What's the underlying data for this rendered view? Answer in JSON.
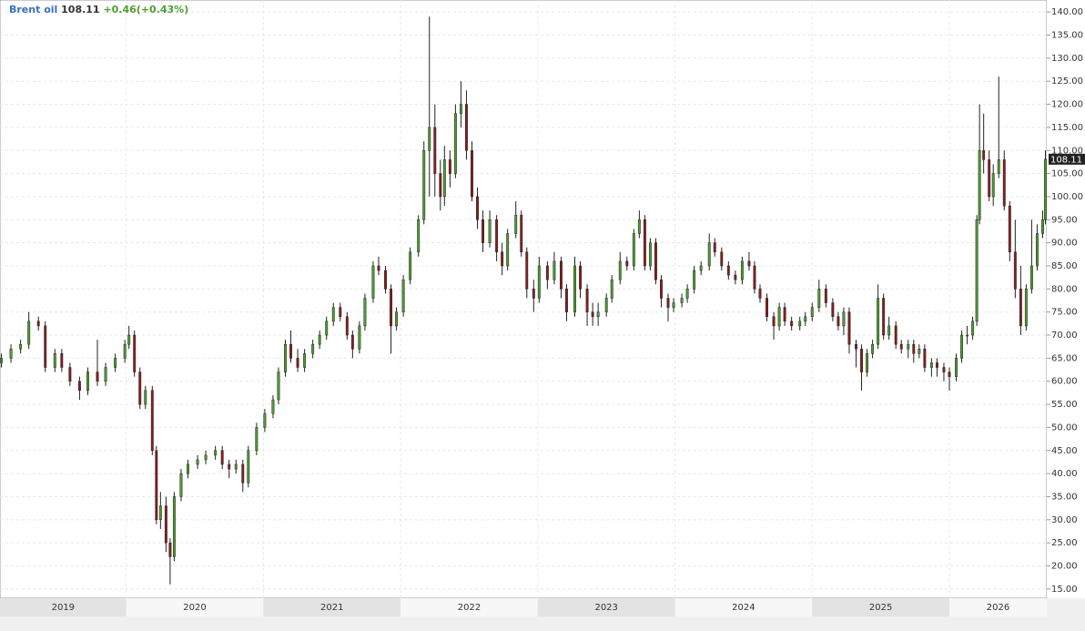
{
  "chart_data": {
    "type": "candlestick",
    "title": "Brent oil",
    "change": "+0.46(+0.43%)",
    "up_color": "#4c9e2f",
    "down_color": "#8a1d1d",
    "grid": true,
    "x": [
      2019.09,
      2019.16,
      2019.23,
      2019.29,
      2019.36,
      2019.41,
      2019.48,
      2019.53,
      2019.59,
      2019.66,
      2019.72,
      2019.79,
      2019.85,
      2019.92,
      2019.99,
      2020.02,
      2020.06,
      2020.1,
      2020.14,
      2020.19,
      2020.22,
      2020.25,
      2020.29,
      2020.32,
      2020.35,
      2020.4,
      2020.45,
      2020.52,
      2020.58,
      2020.65,
      2020.7,
      2020.75,
      2020.8,
      2020.85,
      2020.89,
      2020.95,
      2021.01,
      2021.07,
      2021.11,
      2021.16,
      2021.2,
      2021.25,
      2021.3,
      2021.36,
      2021.41,
      2021.46,
      2021.51,
      2021.56,
      2021.61,
      2021.65,
      2021.7,
      2021.74,
      2021.8,
      2021.84,
      2021.89,
      2021.93,
      2021.97,
      2022.02,
      2022.07,
      2022.13,
      2022.17,
      2022.21,
      2022.25,
      2022.29,
      2022.32,
      2022.36,
      2022.4,
      2022.44,
      2022.48,
      2022.52,
      2022.56,
      2022.6,
      2022.65,
      2022.7,
      2022.74,
      2022.78,
      2022.84,
      2022.88,
      2022.92,
      2022.97,
      2023.01,
      2023.07,
      2023.12,
      2023.17,
      2023.21,
      2023.27,
      2023.31,
      2023.36,
      2023.4,
      2023.44,
      2023.5,
      2023.54,
      2023.6,
      2023.65,
      2023.7,
      2023.74,
      2023.78,
      2023.82,
      2023.86,
      2023.9,
      2023.95,
      2023.99,
      2024.05,
      2024.09,
      2024.14,
      2024.19,
      2024.25,
      2024.29,
      2024.34,
      2024.39,
      2024.44,
      2024.49,
      2024.54,
      2024.58,
      2024.62,
      2024.67,
      2024.72,
      2024.76,
      2024.8,
      2024.85,
      2024.91,
      2024.95,
      2025.0,
      2025.05,
      2025.1,
      2025.15,
      2025.19,
      2025.23,
      2025.27,
      2025.32,
      2025.36,
      2025.4,
      2025.44,
      2025.48,
      2025.52,
      2025.56,
      2025.61,
      2025.65,
      2025.7,
      2025.74,
      2025.78,
      2025.82,
      2025.87,
      2025.91,
      2025.96,
      2026.0,
      2026.05,
      2026.09,
      2026.13,
      2026.17,
      2026.2,
      2026.22,
      2026.25,
      2026.29,
      2026.32,
      2026.36,
      2026.4,
      2026.44,
      2026.48,
      2026.52,
      2026.56,
      2026.6,
      2026.64,
      2026.68,
      2026.7
    ],
    "open": [
      64,
      65,
      67,
      68,
      73,
      72,
      63,
      66,
      63,
      60,
      58,
      62,
      60,
      63,
      65,
      68,
      70,
      62,
      55,
      58,
      45,
      30,
      33,
      25,
      22,
      35,
      40,
      42,
      43,
      44,
      45,
      42,
      41,
      42,
      38,
      45,
      50,
      53,
      56,
      62,
      68,
      65,
      63,
      66,
      68,
      70,
      73,
      76,
      74,
      70,
      67,
      72,
      78,
      85,
      84,
      80,
      72,
      75,
      82,
      88,
      95,
      110,
      115,
      105,
      100,
      108,
      105,
      118,
      120,
      110,
      100,
      95,
      90,
      95,
      88,
      85,
      92,
      96,
      88,
      80,
      78,
      85,
      82,
      86,
      80,
      75,
      85,
      80,
      75,
      74,
      75,
      78,
      82,
      86,
      85,
      92,
      95,
      85,
      90,
      82,
      78,
      76,
      77,
      78,
      80,
      84,
      85,
      90,
      88,
      85,
      83,
      82,
      86,
      85,
      80,
      78,
      74,
      72,
      76,
      73,
      72,
      73,
      74,
      76,
      80,
      77,
      74,
      72,
      75,
      68,
      67,
      62,
      66,
      68,
      78,
      70,
      72,
      68,
      67,
      68,
      66,
      67,
      63,
      64,
      63,
      62,
      61,
      65,
      70,
      70,
      73,
      95,
      110,
      108,
      100,
      105,
      108,
      98,
      88,
      80,
      72,
      80,
      85,
      92,
      95
    ],
    "high": [
      66,
      68,
      69,
      75,
      74,
      73,
      67,
      67,
      64,
      61,
      63,
      69,
      64,
      66,
      69,
      72,
      71,
      63,
      59,
      59,
      46,
      36,
      35,
      26,
      36,
      41,
      43,
      44,
      45,
      46,
      46,
      43,
      43,
      43,
      46,
      51,
      54,
      57,
      63,
      69,
      71,
      67,
      67,
      69,
      71,
      74,
      77,
      77,
      75,
      71,
      73,
      79,
      86,
      87,
      85,
      81,
      76,
      83,
      89,
      96,
      112,
      139,
      120,
      108,
      111,
      110,
      120,
      125,
      123,
      112,
      102,
      97,
      97,
      96,
      90,
      93,
      99,
      97,
      89,
      82,
      87,
      86,
      88,
      87,
      81,
      87,
      86,
      81,
      77,
      77,
      79,
      83,
      88,
      87,
      93,
      97,
      96,
      91,
      91,
      83,
      79,
      78,
      79,
      81,
      85,
      86,
      92,
      91,
      89,
      86,
      84,
      87,
      88,
      86,
      81,
      79,
      75,
      77,
      77,
      74,
      74,
      75,
      77,
      82,
      81,
      78,
      75,
      76,
      76,
      69,
      68,
      67,
      69,
      81,
      79,
      74,
      73,
      69,
      69,
      69,
      68,
      68,
      65,
      65,
      64,
      63,
      66,
      71,
      72,
      74,
      96,
      120,
      118,
      110,
      107,
      126,
      110,
      99,
      95,
      85,
      81,
      95,
      94,
      97,
      110
    ],
    "low": [
      63,
      64,
      66,
      67,
      71,
      62,
      62,
      62,
      59,
      56,
      57,
      59,
      59,
      62,
      64,
      67,
      61,
      54,
      54,
      44,
      29,
      28,
      23,
      16,
      21,
      34,
      39,
      41,
      42,
      43,
      41,
      39,
      40,
      36,
      37,
      44,
      49,
      52,
      55,
      61,
      64,
      62,
      62,
      65,
      67,
      69,
      72,
      73,
      69,
      65,
      66,
      71,
      77,
      83,
      79,
      66,
      71,
      74,
      81,
      87,
      94,
      100,
      100,
      97,
      98,
      102,
      104,
      115,
      108,
      99,
      93,
      88,
      89,
      86,
      83,
      84,
      91,
      87,
      78,
      75,
      77,
      80,
      81,
      78,
      73,
      74,
      78,
      72,
      72,
      72,
      74,
      77,
      81,
      84,
      84,
      91,
      84,
      84,
      81,
      76,
      73,
      75,
      76,
      77,
      79,
      83,
      84,
      87,
      84,
      82,
      81,
      81,
      84,
      79,
      77,
      73,
      69,
      71,
      72,
      71,
      71,
      72,
      73,
      75,
      76,
      73,
      71,
      70,
      66,
      63,
      58,
      61,
      65,
      67,
      69,
      69,
      67,
      66,
      65,
      64,
      65,
      62,
      61,
      61,
      60,
      58,
      60,
      64,
      68,
      69,
      72,
      94,
      105,
      99,
      98,
      104,
      97,
      86,
      78,
      70,
      71,
      79,
      84,
      91,
      94
    ],
    "close": [
      65,
      67,
      68,
      73,
      72,
      63,
      66,
      63,
      60,
      58,
      62,
      60,
      63,
      65,
      68,
      70,
      62,
      55,
      58,
      45,
      30,
      33,
      25,
      22,
      35,
      40,
      42,
      43,
      44,
      45,
      42,
      41,
      42,
      38,
      45,
      50,
      53,
      56,
      62,
      68,
      65,
      63,
      66,
      68,
      70,
      73,
      76,
      74,
      70,
      67,
      72,
      78,
      85,
      84,
      80,
      72,
      75,
      82,
      88,
      95,
      110,
      115,
      105,
      100,
      108,
      105,
      118,
      120,
      110,
      100,
      95,
      90,
      95,
      88,
      85,
      92,
      96,
      88,
      80,
      78,
      85,
      82,
      86,
      80,
      75,
      85,
      80,
      75,
      74,
      75,
      78,
      82,
      86,
      85,
      92,
      95,
      85,
      90,
      82,
      78,
      76,
      77,
      78,
      80,
      84,
      85,
      90,
      88,
      85,
      83,
      82,
      86,
      85,
      80,
      78,
      74,
      72,
      76,
      73,
      72,
      73,
      74,
      76,
      80,
      77,
      74,
      72,
      75,
      68,
      67,
      62,
      66,
      68,
      78,
      70,
      72,
      68,
      67,
      68,
      66,
      67,
      63,
      64,
      63,
      62,
      61,
      65,
      70,
      70,
      73,
      95,
      110,
      108,
      100,
      105,
      108,
      98,
      88,
      80,
      72,
      80,
      85,
      92,
      95,
      108.11
    ],
    "xlim": [
      2019.08,
      2026.71
    ],
    "ylim": [
      13,
      142.6
    ],
    "xticks": [
      {
        "value": 2019.5,
        "label": "2019"
      },
      {
        "value": 2020.5,
        "label": "2020"
      },
      {
        "value": 2021.5,
        "label": "2021"
      },
      {
        "value": 2022.5,
        "label": "2022"
      },
      {
        "value": 2023.5,
        "label": "2023"
      },
      {
        "value": 2024.5,
        "label": "2024"
      },
      {
        "value": 2025.5,
        "label": "2025"
      },
      {
        "value": 2026.5,
        "label": "2026"
      }
    ],
    "yticks": [
      {
        "value": 15,
        "label": "15.00"
      },
      {
        "value": 20,
        "label": "20.00"
      },
      {
        "value": 25,
        "label": "25.00"
      },
      {
        "value": 30,
        "label": "30.00"
      },
      {
        "value": 35,
        "label": "35.00"
      },
      {
        "value": 40,
        "label": "40.00"
      },
      {
        "value": 45,
        "label": "45.00"
      },
      {
        "value": 50,
        "label": "50.00"
      },
      {
        "value": 55,
        "label": "55.00"
      },
      {
        "value": 60,
        "label": "60.00"
      },
      {
        "value": 65,
        "label": "65.00"
      },
      {
        "value": 70,
        "label": "70.00"
      },
      {
        "value": 75,
        "label": "75.00"
      },
      {
        "value": 80,
        "label": "80.00"
      },
      {
        "value": 85,
        "label": "85.00"
      },
      {
        "value": 90,
        "label": "90.00"
      },
      {
        "value": 95,
        "label": "95.00"
      },
      {
        "value": 100,
        "label": "100.00"
      },
      {
        "value": 105,
        "label": "105.00"
      },
      {
        "value": 110,
        "label": "110.00"
      },
      {
        "value": 115,
        "label": "115.00"
      },
      {
        "value": 120,
        "label": "120.00"
      },
      {
        "value": 125,
        "label": "125.00"
      },
      {
        "value": 130,
        "label": "130.00"
      },
      {
        "value": 135,
        "label": "135.00"
      },
      {
        "value": 140,
        "label": "140.00"
      }
    ]
  }
}
